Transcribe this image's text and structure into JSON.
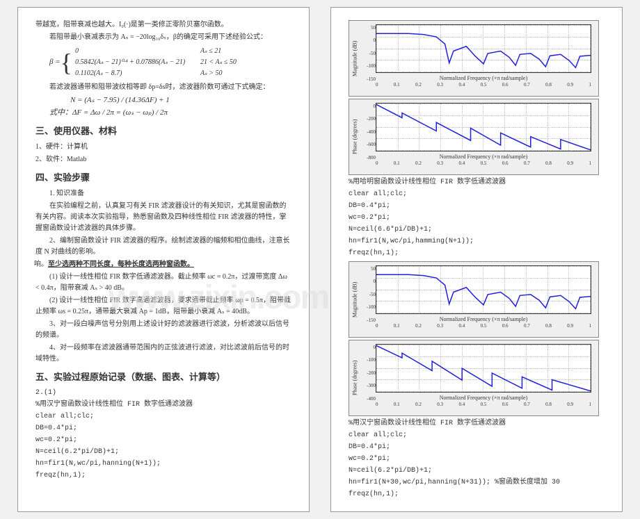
{
  "left": {
    "intro1": "带越宽，阻带衰减也越大。I₀(·)是第一类修正零阶贝塞尔函数。",
    "intro2": "若阻带最小衰减表示为 Aₛ = −20log₁₀δₛ，β的确定可采用下述经验公式：",
    "beta_label": "β =",
    "beta_cases": [
      {
        "expr": "0",
        "cond": "Aₛ ≤ 21"
      },
      {
        "expr": "0.5842(Aₛ − 21)⁰·⁴ + 0.07886(Aₛ − 21)",
        "cond": "21 < Aₛ ≤ 50"
      },
      {
        "expr": "0.1102(Aₛ − 8.7)",
        "cond": "Aₛ > 50"
      }
    ],
    "intro3": "若滤波器通带和阻带波纹相等即 δp=δs时，滤波器阶数可通过下式确定：",
    "formula_N": "N = (Aₛ − 7.95) / (14.36ΔF) + 1",
    "formula_dF": "式中：ΔF = Δω / 2π = (ωₛ − ωₚ) / 2π",
    "sec3_title": "三、使用仪器、材料",
    "sec3_item1": "1、硬件：计算机",
    "sec3_item2": "2、软件：Matlab",
    "sec4_title": "四、实验步骤",
    "sec4_sub1_title": "1. 知识准备",
    "sec4_sub1_body": "在实验编程之前，认真复习有关 FIR 滤波器设计的有关知识，尤其是窗函数的有关内容。阅读本次实验指导，熟悉窗函数及四种线性相位 FIR 滤波器的特性，掌握窗函数设计滤波器的具体步骤。",
    "sec4_sub2": "2、编制窗函数设计 FIR 滤波器的程序。绘制滤波器的幅频和相位曲线，注意长度 N 对曲线的影响。",
    "sec4_highlight": "至少选两种不同长度，每种长度选两种窗函数。",
    "spec1": "(1) 设计一线性相位 FIR 数字低通滤波器。截止频率 ωc = 0.2π，过渡带宽度 Δω < 0.4π，阻带衰减 Aₛ > 40 dB。",
    "spec2": "(2) 设计一线性相位 FIR 数字高通滤波器，要求通带截止频率 ωp = 0.5π，阻带截止频率 ωs = 0.25π，通带最大衰减 Ap = 1dB，阻带最小衰减 Aₛ = 40dB。",
    "sec4_sub3": "3、对一段白噪声信号分别用上述设计好的滤波器进行滤波，分析滤波以后信号的频谱。",
    "sec4_sub4": "4、对一段频率在滤波器通带范围内的正弦波进行滤波，对比滤波前后信号的时域特性。",
    "sec5_title": "五、实验过程原始记录（数据、图表、计算等）",
    "sec5_sub": "2.(1)",
    "code1_title": "%用汉宁窗函数设计线性相位 FIR 数字低通滤波器",
    "code1": [
      "clear all;clc;",
      "DB=0.4*pi;",
      "wc=0.2*pi;",
      "N=ceil(6.2*pi/DB)+1;",
      "hn=fir1(N,wc/pi,hanning(N+1));",
      "freqz(hn,1);"
    ]
  },
  "right": {
    "chart_common": {
      "xlabel": "Normalized Frequency (×π rad/sample)",
      "xticks": [
        "0",
        "0.1",
        "0.2",
        "0.3",
        "0.4",
        "0.5",
        "0.6",
        "0.7",
        "0.8",
        "0.9",
        "1"
      ],
      "line_color": "#2020dd",
      "grid_color": "#bbbbbb",
      "background": "#efefef",
      "plot_background": "#ffffff"
    },
    "chart1": {
      "ylabel": "Magnitude (dB)",
      "yticks": [
        "50",
        "0",
        "-50",
        "-100",
        "-150"
      ],
      "line_svg": "M 0 18 L 15 18 L 22 20 L 28 25 L 32 40 L 34 80 L 36 55 L 42 45 L 46 65 L 50 82 L 52 60 L 58 55 L 62 68 L 65 85 L 67 62 L 72 60 L 76 72 L 79 88 L 81 65 L 86 62 L 90 75 L 93 90 L 95 66 L 100 64"
    },
    "chart2": {
      "ylabel": "Phase (degrees)",
      "yticks": [
        "0",
        "-200",
        "-400",
        "-600",
        "-800"
      ],
      "line_svg": "M 0 2 L 12 30 L 12 20 L 28 58 L 28 40 L 44 78 L 44 52 L 58 88 L 58 62 L 72 92 L 72 70 L 86 96 L 86 76 L 100 98"
    },
    "caption1": "%用哈明窗函数设计线性相位 FIR 数字低通滤波器",
    "code2": [
      "clear all;clc;",
      "DB=0.4*pi;",
      "wc=0.2*pi;",
      "N=ceil(6.6*pi/DB)+1;",
      "hn=fir1(N,wc/pi,hamming(N+1));",
      "freqz(hn,1);"
    ],
    "chart3": {
      "ylabel": "Magnitude (dB)",
      "yticks": [
        "50",
        "0",
        "-50",
        "-100",
        "-150"
      ],
      "line_svg": "M 0 18 L 15 18 L 22 20 L 28 25 L 32 40 L 34 80 L 36 55 L 42 45 L 46 65 L 50 82 L 52 60 L 58 55 L 62 68 L 65 85 L 67 62 L 72 60 L 76 72 L 79 88 L 81 65 L 86 62 L 90 75 L 93 90 L 95 66 L 100 64"
    },
    "chart4": {
      "ylabel": "Phase (degrees)",
      "yticks": [
        "0",
        "-100",
        "-200",
        "-300",
        "-400"
      ],
      "line_svg": "M 0 2 L 12 28 L 12 18 L 26 55 L 26 35 L 40 75 L 40 50 L 54 88 L 54 60 L 68 92 L 68 68 L 82 96 L 82 74 L 100 98"
    },
    "caption2": "%用汉宁窗函数设计线性相位 FIR 数字低通滤波器",
    "code3": [
      "clear all;clc;",
      "DB=0.4*pi;",
      "wc=0.2*pi;",
      "N=ceil(6.2*pi/DB)+1;",
      "hn=fir1(N+30,wc/pi,hanning(N+31)); %窗函数长度增加 30",
      "freqz(hn,1);"
    ]
  }
}
